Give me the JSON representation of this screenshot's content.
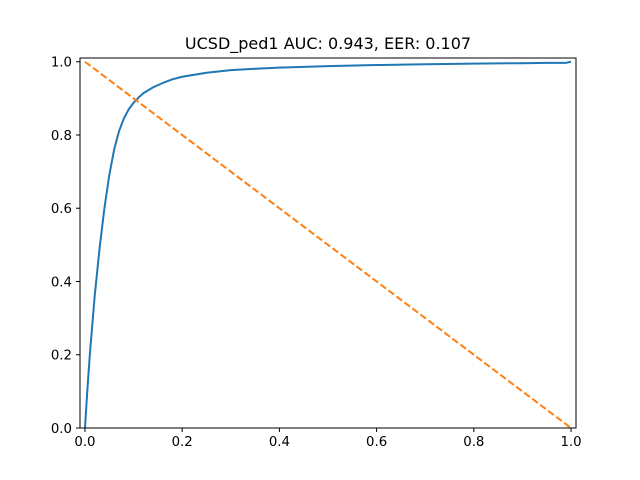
{
  "chart_data": {
    "type": "line",
    "title": "UCSD_ped1 AUC: 0.943, EER: 0.107",
    "xlabel": "",
    "ylabel": "",
    "xlim": [
      0.0,
      1.0
    ],
    "ylim": [
      0.0,
      1.0
    ],
    "x_ticks": [
      "0.0",
      "0.2",
      "0.4",
      "0.6",
      "0.8",
      "1.0"
    ],
    "y_ticks": [
      "0.0",
      "0.2",
      "0.4",
      "0.6",
      "0.8",
      "1.0"
    ],
    "grid": false,
    "legend": "none",
    "series": [
      {
        "color": "#1f77b4",
        "line_style": "solid",
        "x": [
          0.0,
          0.005,
          0.01,
          0.02,
          0.03,
          0.04,
          0.05,
          0.06,
          0.07,
          0.08,
          0.09,
          0.1,
          0.11,
          0.12,
          0.14,
          0.16,
          0.18,
          0.2,
          0.25,
          0.3,
          0.35,
          0.4,
          0.5,
          0.6,
          0.7,
          0.8,
          0.9,
          0.95,
          0.99,
          1.0
        ],
        "y": [
          0.0,
          0.105,
          0.2,
          0.36,
          0.49,
          0.6,
          0.69,
          0.76,
          0.81,
          0.845,
          0.87,
          0.888,
          0.902,
          0.914,
          0.93,
          0.942,
          0.952,
          0.959,
          0.97,
          0.977,
          0.981,
          0.984,
          0.988,
          0.991,
          0.993,
          0.995,
          0.996,
          0.997,
          0.997,
          1.0
        ]
      },
      {
        "color": "#ff7f0e",
        "line_style": "dashed",
        "x": [
          0.0,
          1.0
        ],
        "y": [
          1.0,
          0.0
        ]
      }
    ]
  }
}
